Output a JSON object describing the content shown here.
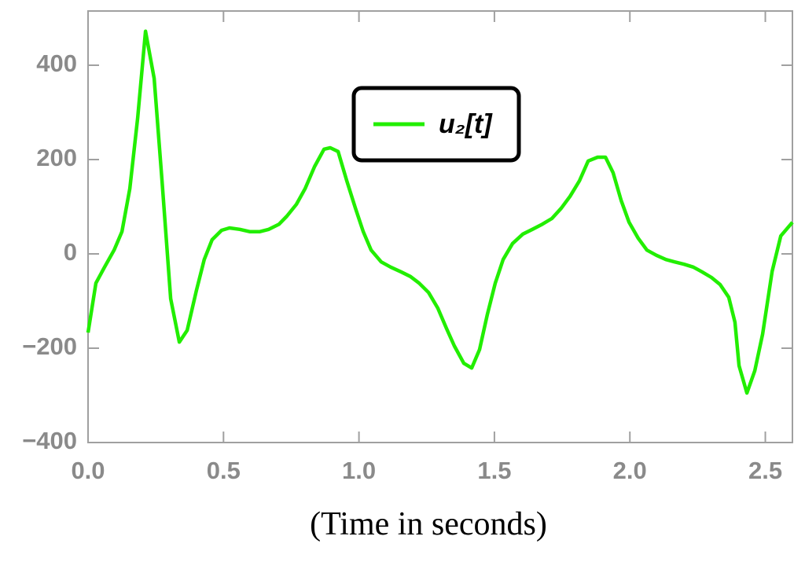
{
  "chart_data": {
    "type": "line",
    "x_label": "(Time in seconds)",
    "xlim": [
      0,
      2.6
    ],
    "ylim": [
      -400,
      515
    ],
    "xticks": [
      {
        "value": 0,
        "label": "0.0"
      },
      0.5,
      {
        "value": 1,
        "label": "1.0"
      },
      1.5,
      {
        "value": 2,
        "label": "2.0"
      },
      2.5
    ],
    "yticks": [
      {
        "value": -400,
        "label": "−400"
      },
      {
        "value": -200,
        "label": "−200"
      },
      0,
      200,
      400
    ],
    "legend": "top-center",
    "series": [
      {
        "name": "u₂[t]",
        "color": "#22ee00",
        "x": [
          0,
          0.029,
          0.061,
          0.096,
          0.125,
          0.154,
          0.183,
          0.212,
          0.244,
          0.273,
          0.305,
          0.337,
          0.366,
          0.4,
          0.429,
          0.458,
          0.493,
          0.522,
          0.56,
          0.598,
          0.633,
          0.667,
          0.705,
          0.734,
          0.769,
          0.801,
          0.836,
          0.871,
          0.894,
          0.923,
          0.955,
          0.987,
          1.016,
          1.045,
          1.082,
          1.117,
          1.155,
          1.19,
          1.222,
          1.257,
          1.291,
          1.323,
          1.352,
          1.387,
          1.416,
          1.445,
          1.474,
          1.503,
          1.532,
          1.567,
          1.605,
          1.64,
          1.677,
          1.712,
          1.747,
          1.779,
          1.814,
          1.846,
          1.881,
          1.91,
          1.938,
          1.968,
          1.997,
          2.031,
          2.063,
          2.098,
          2.133,
          2.165,
          2.2,
          2.234,
          2.266,
          2.301,
          2.333,
          2.365,
          2.388,
          2.403,
          2.432,
          2.461,
          2.49,
          2.525,
          2.557,
          2.6
        ],
        "values": [
          -167,
          -62,
          -28,
          8,
          47,
          138,
          288,
          472,
          372,
          155,
          -95,
          -187,
          -162,
          -78,
          -12,
          30,
          50,
          55,
          52,
          47,
          47,
          52,
          63,
          80,
          105,
          138,
          185,
          222,
          225,
          217,
          155,
          97,
          47,
          8,
          -17,
          -28,
          -38,
          -48,
          -62,
          -82,
          -115,
          -158,
          -195,
          -232,
          -242,
          -203,
          -128,
          -62,
          -12,
          22,
          42,
          52,
          63,
          75,
          97,
          122,
          155,
          197,
          205,
          205,
          172,
          113,
          67,
          33,
          8,
          -3,
          -12,
          -17,
          -22,
          -28,
          -38,
          -50,
          -65,
          -92,
          -145,
          -237,
          -295,
          -248,
          -170,
          -37,
          38,
          67
        ]
      }
    ]
  }
}
